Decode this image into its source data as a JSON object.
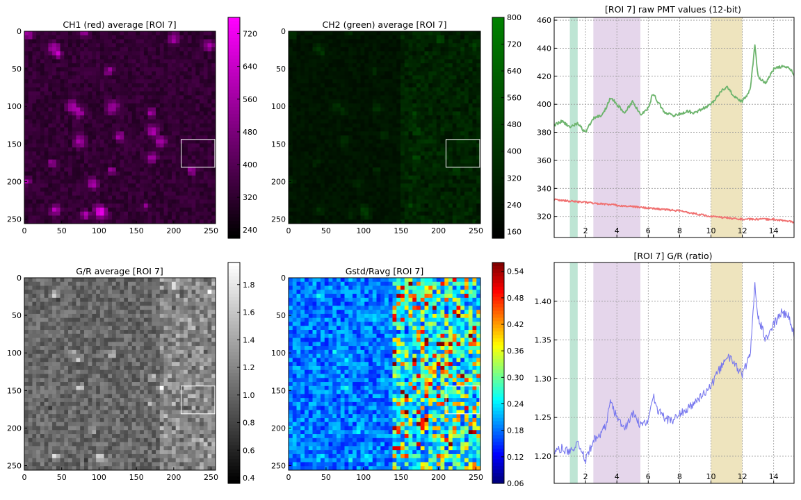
{
  "figure": {
    "panels": [
      {
        "id": "ch1",
        "title": "CH1 (red) average [ROI 7]",
        "xticks": [
          "0",
          "50",
          "100",
          "150",
          "200",
          "250"
        ],
        "yticks": [
          "0",
          "50",
          "100",
          "150",
          "200",
          "250"
        ],
        "colormap": "black-to-magenta",
        "colorbar_ticks": [
          "720",
          "640",
          "560",
          "480",
          "400",
          "320",
          "240"
        ],
        "colorbar_range": [
          220,
          760
        ]
      },
      {
        "id": "ch2",
        "title": "CH2 (green) average [ROI 7]",
        "xticks": [
          "0",
          "50",
          "100",
          "150",
          "200",
          "250"
        ],
        "yticks": [
          "0",
          "50",
          "100",
          "150",
          "200",
          "250"
        ],
        "colormap": "black-to-green",
        "colorbar_ticks": [
          "800",
          "720",
          "640",
          "560",
          "480",
          "400",
          "320",
          "240",
          "160"
        ],
        "colorbar_range": [
          140,
          800
        ]
      },
      {
        "id": "gr",
        "title": "G/R average [ROI 7]",
        "xticks": [
          "0",
          "50",
          "100",
          "150",
          "200",
          "250"
        ],
        "yticks": [
          "0",
          "50",
          "100",
          "150",
          "200",
          "250"
        ],
        "colormap": "gray",
        "colorbar_ticks": [
          "1.8",
          "1.6",
          "1.4",
          "1.2",
          "1.0",
          "0.8",
          "0.6",
          "0.4"
        ],
        "colorbar_range": [
          0.36,
          1.96
        ]
      },
      {
        "id": "gstd",
        "title": "Gstd/Ravg [ROI 7]",
        "xticks": [
          "0",
          "50",
          "100",
          "150",
          "200",
          "250"
        ],
        "yticks": [
          "0",
          "50",
          "100",
          "150",
          "200",
          "250"
        ],
        "colormap": "jet",
        "colorbar_ticks": [
          "0.54",
          "0.48",
          "0.42",
          "0.36",
          "0.30",
          "0.24",
          "0.18",
          "0.12",
          "0.06"
        ],
        "colorbar_range": [
          0.06,
          0.56
        ]
      }
    ],
    "roi_box": {
      "x": [
        210,
        255
      ],
      "y": [
        144,
        181
      ]
    }
  },
  "chart_data": [
    {
      "type": "line",
      "title": "[ROI 7] raw PMT values (12-bit)",
      "xlim": [
        0,
        15.3
      ],
      "ylim": [
        305,
        462
      ],
      "xticks": [
        "2",
        "4",
        "6",
        "8",
        "10",
        "12",
        "14"
      ],
      "yticks": [
        "320",
        "340",
        "360",
        "380",
        "400",
        "420",
        "440",
        "460"
      ],
      "grid": true,
      "shaded_regions": [
        {
          "x": [
            1.0,
            1.5
          ],
          "color": "#a8dcc5"
        },
        {
          "x": [
            2.5,
            5.5
          ],
          "color": "#dcc8e4"
        },
        {
          "x": [
            10.0,
            12.0
          ],
          "color": "#e8dba8"
        }
      ],
      "series": [
        {
          "color": "#6db46d",
          "x": [
            0,
            0.5,
            1.0,
            1.5,
            2.0,
            2.5,
            3.0,
            3.3,
            3.6,
            4.0,
            4.5,
            5.0,
            5.5,
            6.0,
            6.3,
            6.6,
            7.0,
            7.5,
            8.0,
            8.5,
            9.0,
            9.5,
            10.0,
            10.5,
            11.0,
            11.5,
            12.0,
            12.5,
            12.8,
            13.0,
            13.5,
            14.0,
            14.5,
            15.0,
            15.3
          ],
          "y": [
            385,
            388,
            384,
            386,
            380,
            390,
            392,
            397,
            405,
            400,
            394,
            402,
            393,
            397,
            408,
            402,
            395,
            392,
            393,
            395,
            394,
            397,
            400,
            407,
            413,
            405,
            402,
            410,
            442,
            420,
            415,
            425,
            427,
            426,
            421
          ]
        },
        {
          "color": "#f07070",
          "x": [
            0,
            1,
            2,
            3,
            4,
            5,
            6,
            7,
            8,
            9,
            10,
            11,
            12,
            13,
            14,
            15.3
          ],
          "y": [
            332,
            331,
            330,
            329,
            328,
            327,
            326,
            325,
            324,
            322,
            320,
            319,
            318,
            318,
            318,
            316
          ]
        }
      ]
    },
    {
      "type": "line",
      "title": "[ROI 7] G/R (ratio)",
      "xlim": [
        0,
        15.3
      ],
      "ylim": [
        1.165,
        1.45
      ],
      "xticks": [
        "2",
        "4",
        "6",
        "8",
        "10",
        "12",
        "14"
      ],
      "yticks": [
        "1.20",
        "1.25",
        "1.30",
        "1.35",
        "1.40"
      ],
      "grid": true,
      "shaded_regions": [
        {
          "x": [
            1.0,
            1.5
          ],
          "color": "#a8dcc5"
        },
        {
          "x": [
            2.5,
            5.5
          ],
          "color": "#dcc8e4"
        },
        {
          "x": [
            10.0,
            12.0
          ],
          "color": "#e8dba8"
        }
      ],
      "series": [
        {
          "color": "#7777ee",
          "x": [
            0,
            0.5,
            1.0,
            1.5,
            2.0,
            2.5,
            3.0,
            3.3,
            3.6,
            4.0,
            4.5,
            5.0,
            5.5,
            6.0,
            6.3,
            6.6,
            7.0,
            7.5,
            8.0,
            8.5,
            9.0,
            9.5,
            10.0,
            10.5,
            11.0,
            11.5,
            12.0,
            12.5,
            12.8,
            13.0,
            13.5,
            14.0,
            14.5,
            15.0,
            15.3
          ],
          "y": [
            1.205,
            1.21,
            1.205,
            1.215,
            1.195,
            1.22,
            1.23,
            1.24,
            1.27,
            1.25,
            1.235,
            1.255,
            1.24,
            1.245,
            1.28,
            1.26,
            1.25,
            1.245,
            1.255,
            1.26,
            1.27,
            1.28,
            1.29,
            1.31,
            1.33,
            1.32,
            1.305,
            1.33,
            1.42,
            1.38,
            1.35,
            1.37,
            1.385,
            1.38,
            1.355
          ]
        }
      ]
    }
  ]
}
